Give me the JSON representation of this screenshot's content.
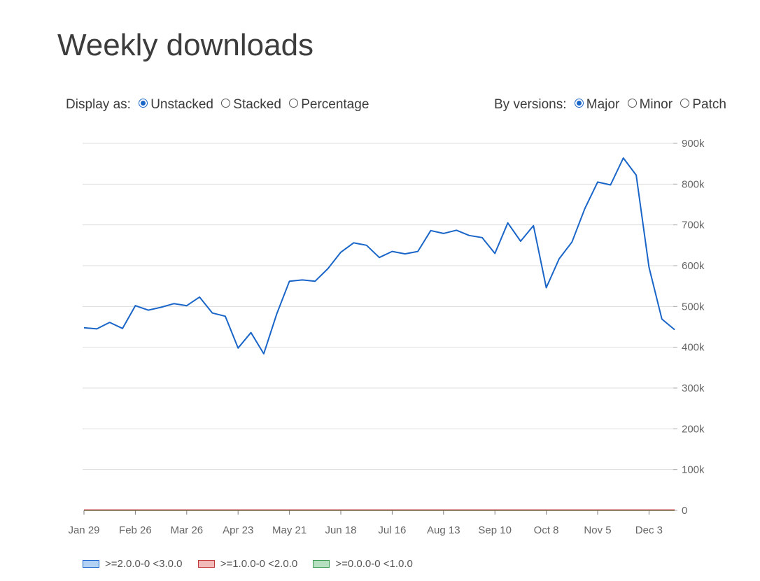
{
  "title": "Weekly downloads",
  "display": {
    "label": "Display as:",
    "options": [
      {
        "label": "Unstacked",
        "checked": true
      },
      {
        "label": "Stacked",
        "checked": false
      },
      {
        "label": "Percentage",
        "checked": false
      }
    ]
  },
  "versions": {
    "label": "By versions:",
    "options": [
      {
        "label": "Major",
        "checked": true
      },
      {
        "label": "Minor",
        "checked": false
      },
      {
        "label": "Patch",
        "checked": false
      }
    ]
  },
  "colors": {
    "accent": "#1a65c8",
    "grid": "#dddddd",
    "axis": "#7a7a7a"
  },
  "chart_data": {
    "type": "line",
    "title": "Weekly downloads",
    "ylim": [
      0,
      900000
    ],
    "y_ticks": [
      0,
      100000,
      200000,
      300000,
      400000,
      500000,
      600000,
      700000,
      800000,
      900000
    ],
    "y_tick_labels": [
      "0",
      "100k",
      "200k",
      "300k",
      "400k",
      "500k",
      "600k",
      "700k",
      "800k",
      "900k"
    ],
    "x_tick_labels": [
      "Jan 29",
      "Feb 26",
      "Mar 26",
      "Apr 23",
      "May 21",
      "Jun 18",
      "Jul 16",
      "Aug 13",
      "Sep 10",
      "Oct 8",
      "Nov 5",
      "Dec 3"
    ],
    "x_tick_every": 4,
    "grid": true,
    "legend_position": "bottom",
    "series": [
      {
        "name": ">=2.0.0-0 <3.0.0",
        "color": "#1a65c8",
        "swatch_fill": "#b3d1f5",
        "values": [
          448000,
          445000,
          461000,
          446000,
          502000,
          491000,
          498000,
          507000,
          502000,
          523000,
          484000,
          476000,
          398000,
          436000,
          384000,
          481000,
          562000,
          565000,
          562000,
          593000,
          633000,
          656000,
          650000,
          620000,
          635000,
          629000,
          635000,
          686000,
          679000,
          687000,
          674000,
          669000,
          630000,
          705000,
          660000,
          698000,
          546000,
          617000,
          658000,
          740000,
          805000,
          798000,
          864000,
          822000,
          596000,
          469000,
          443000
        ]
      },
      {
        "name": ">=1.0.0-0 <2.0.0",
        "color": "#c0393b",
        "swatch_fill": "#f2b9b9",
        "values": [
          1000,
          1000,
          1000,
          1000,
          1000,
          1000,
          1000,
          1000,
          1000,
          1000,
          1000,
          1000,
          1000,
          1000,
          1000,
          1000,
          1000,
          1000,
          1000,
          1000,
          1000,
          1000,
          1000,
          1000,
          1000,
          1000,
          1000,
          1000,
          1000,
          1000,
          1000,
          1000,
          1000,
          1000,
          1000,
          1000,
          1000,
          1000,
          1000,
          1000,
          1000,
          1000,
          1000,
          1000,
          1000,
          1000,
          1000
        ]
      },
      {
        "name": ">=0.0.0-0 <1.0.0",
        "color": "#3e9a55",
        "swatch_fill": "#b6dfc0",
        "values": [
          0,
          0,
          0,
          0,
          0,
          0,
          0,
          0,
          0,
          0,
          0,
          0,
          0,
          0,
          0,
          0,
          0,
          0,
          0,
          0,
          0,
          0,
          0,
          0,
          0,
          0,
          0,
          0,
          0,
          0,
          0,
          0,
          0,
          0,
          0,
          0,
          0,
          0,
          0,
          0,
          0,
          0,
          0,
          0,
          0,
          0,
          0
        ]
      }
    ]
  }
}
